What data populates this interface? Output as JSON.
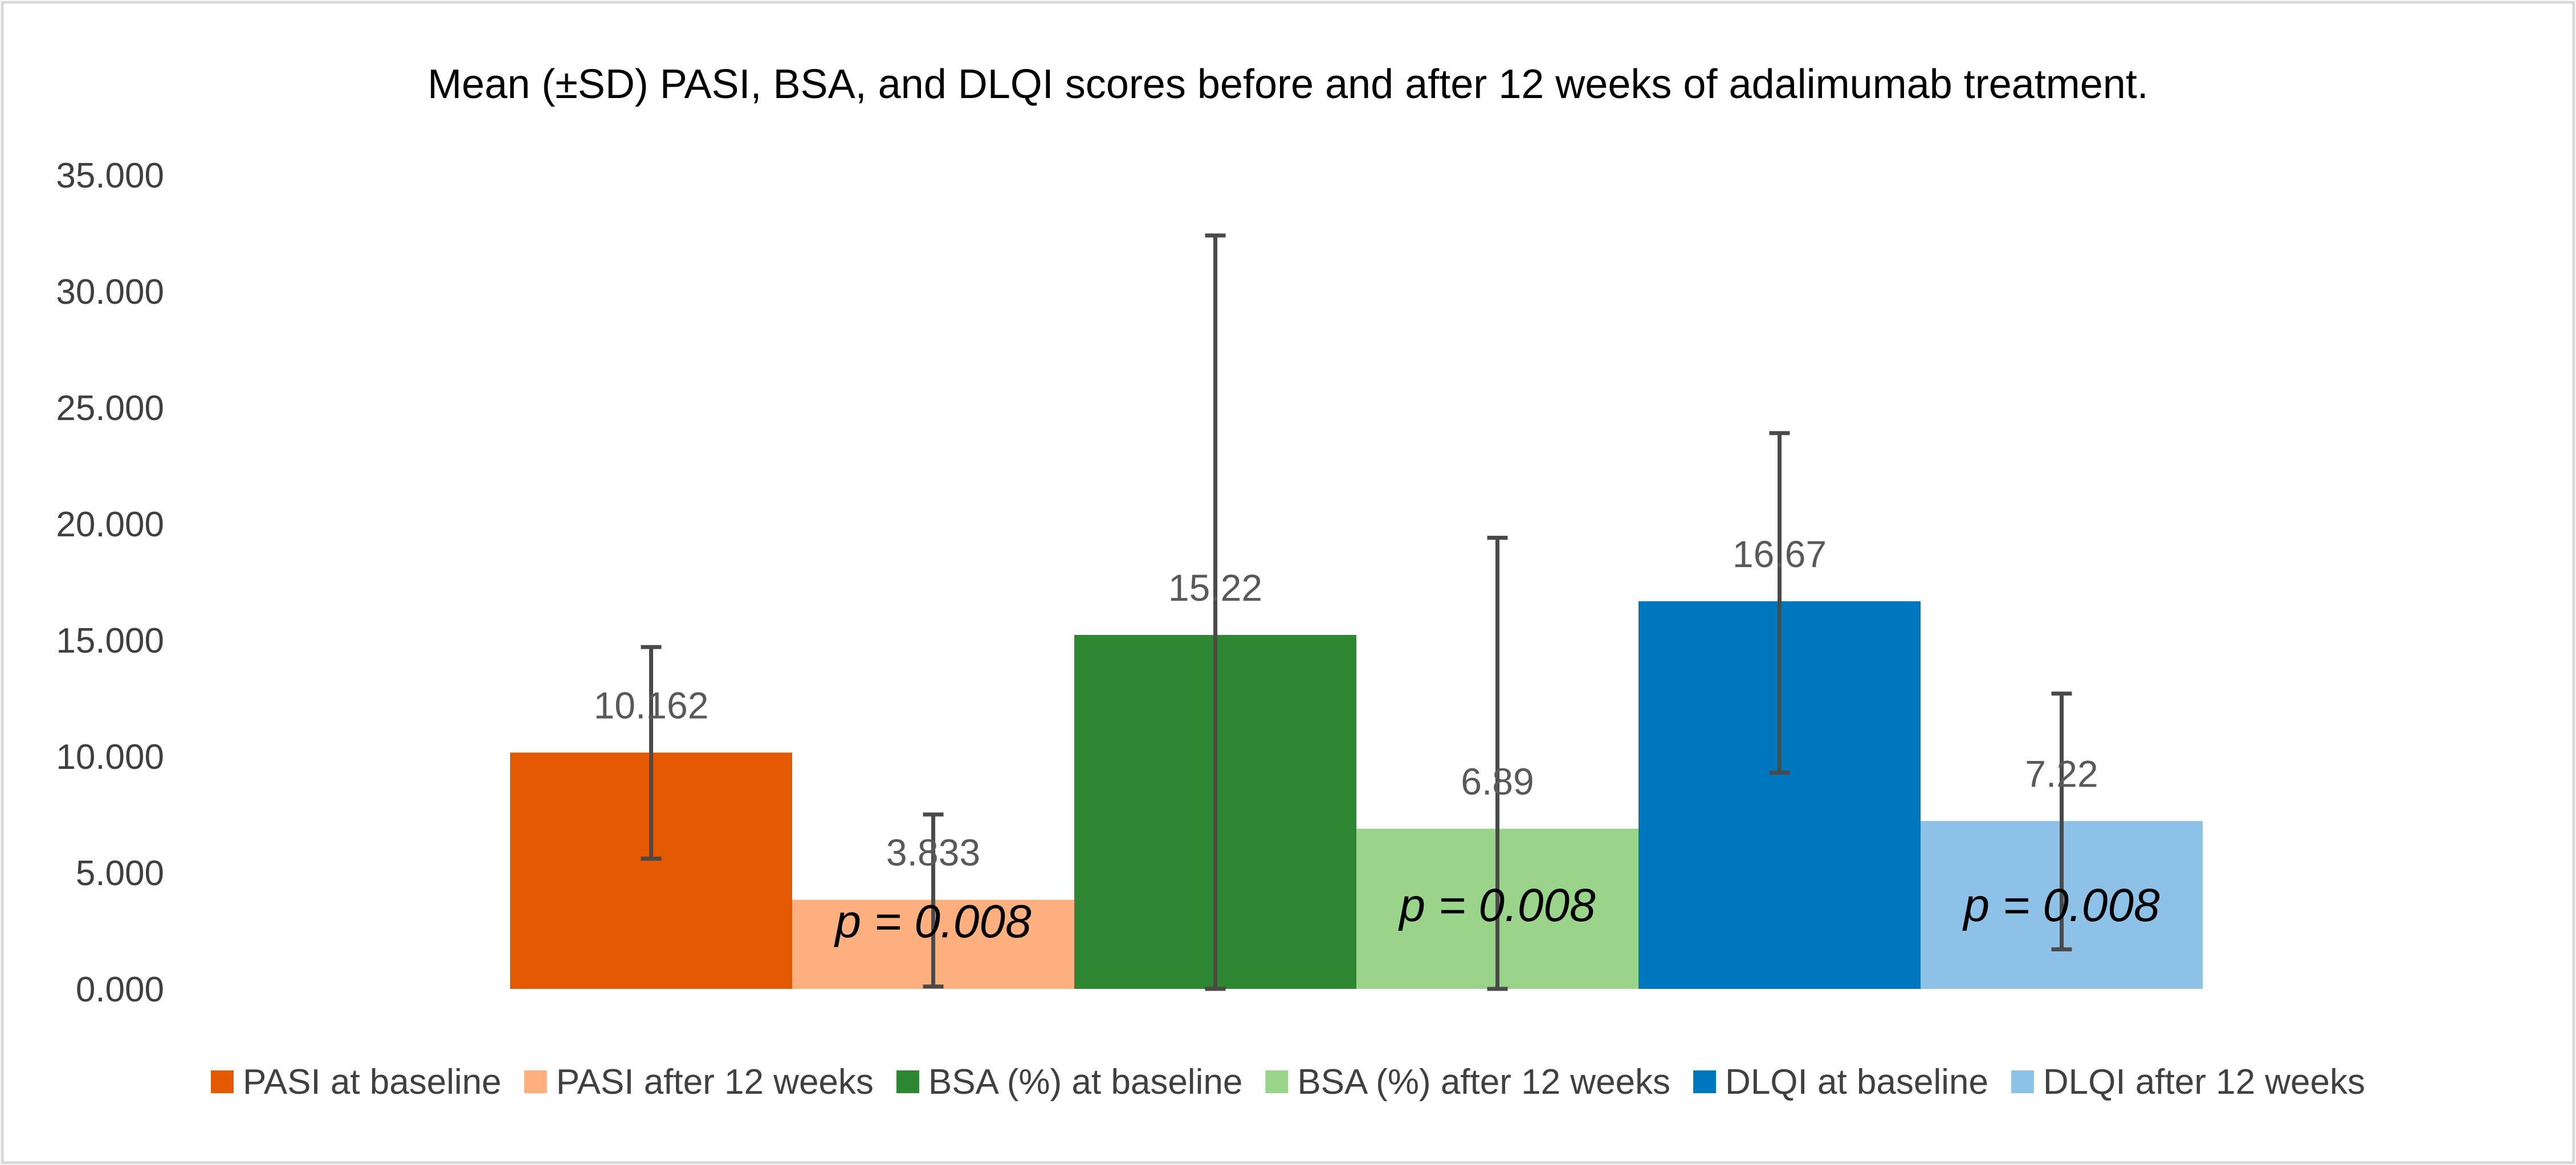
{
  "chart_data": {
    "type": "bar",
    "title": "Mean (±SD) PASI, BSA, and DLQI scores before and after 12 weeks of adalimumab treatment.",
    "xlabel": "",
    "ylabel": "",
    "ylim": [
      0,
      35
    ],
    "y_ticks": [
      "0.000",
      "5.000",
      "10.000",
      "15.000",
      "20.000",
      "25.000",
      "30.000",
      "35.000"
    ],
    "y_tick_values": [
      0,
      5,
      10,
      15,
      20,
      25,
      30,
      35
    ],
    "grid": false,
    "legend_position": "bottom",
    "series": [
      {
        "name": "PASI at baseline",
        "value": 10.162,
        "label": "10.162",
        "error_low": 5.6,
        "error_high": 14.7,
        "color": "#E15A00"
      },
      {
        "name": "PASI after 12 weeks",
        "value": 3.833,
        "label": "3.833",
        "error_low": 0.1,
        "error_high": 7.5,
        "color": "#FDB07F"
      },
      {
        "name": "BSA (%) at baseline",
        "value": 15.22,
        "label": "15.22",
        "error_low": 0.0,
        "error_high": 32.4,
        "color": "#2E8631"
      },
      {
        "name": "BSA (%) after 12 weeks",
        "value": 6.89,
        "label": "6.89",
        "error_low": 0.0,
        "error_high": 19.4,
        "color": "#99D48B"
      },
      {
        "name": "DLQI at baseline",
        "value": 16.67,
        "label": "16.67",
        "error_low": 9.3,
        "error_high": 23.9,
        "color": "#0175BF"
      },
      {
        "name": "DLQI after 12 weeks",
        "value": 7.22,
        "label": "7.22",
        "error_low": 1.7,
        "error_high": 12.7,
        "color": "#8DC1E6"
      }
    ],
    "annotations": [
      {
        "text": "p = 0.008",
        "series_index": 1,
        "y": 2.9
      },
      {
        "text": "p = 0.008",
        "series_index": 3,
        "y": 3.6
      },
      {
        "text": "p = 0.008",
        "series_index": 5,
        "y": 3.6
      }
    ]
  }
}
